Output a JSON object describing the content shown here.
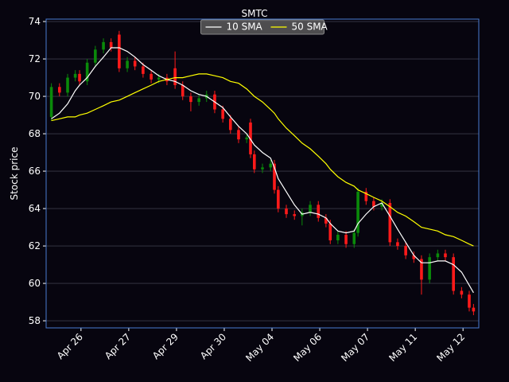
{
  "chart_data": {
    "type": "candlestick",
    "title": "SMTC",
    "y_label": "Stock price",
    "x": [
      0.38,
      0.55,
      0.72,
      0.88,
      0.97,
      1.13,
      1.3,
      1.47,
      1.63,
      1.8,
      1.97,
      2.13,
      2.3,
      2.47,
      2.63,
      2.8,
      2.97,
      3.13,
      3.3,
      3.47,
      3.63,
      3.8,
      3.97,
      4.13,
      4.3,
      4.47,
      4.55,
      4.63,
      4.8,
      4.97,
      5.05,
      5.13,
      5.3,
      5.47,
      5.63,
      5.8,
      5.97,
      6.13,
      6.22,
      6.38,
      6.55,
      6.72,
      6.8,
      6.97,
      7.13,
      7.3,
      7.47,
      7.63,
      7.8,
      7.97,
      8.13,
      8.3,
      8.47,
      8.63,
      8.8,
      8.97,
      9.13,
      9.22
    ],
    "open": [
      68.9,
      70.5,
      70.2,
      71.0,
      71.2,
      70.8,
      71.8,
      72.5,
      72.9,
      73.3,
      71.5,
      71.9,
      71.6,
      71.2,
      70.9,
      71.0,
      71.5,
      70.6,
      70.0,
      69.7,
      69.9,
      70.1,
      69.3,
      68.8,
      68.2,
      67.7,
      68.6,
      66.9,
      66.1,
      66.2,
      66.4,
      65.0,
      64.0,
      63.7,
      63.6,
      63.8,
      64.2,
      63.5,
      63.2,
      62.3,
      62.6,
      62.1,
      62.7,
      64.9,
      64.4,
      64.1,
      64.3,
      62.2,
      62.0,
      61.5,
      61.3,
      60.2,
      61.4,
      61.6,
      61.4,
      59.6,
      59.4,
      58.7
    ],
    "high": [
      70.7,
      70.7,
      71.2,
      71.4,
      71.4,
      72.0,
      72.7,
      73.1,
      73.1,
      73.5,
      72.1,
      72.1,
      71.8,
      71.4,
      71.2,
      71.2,
      72.4,
      70.8,
      70.2,
      70.1,
      70.3,
      70.3,
      69.5,
      69.0,
      68.4,
      68.0,
      68.8,
      67.1,
      66.4,
      66.6,
      66.6,
      65.2,
      64.2,
      63.9,
      64.0,
      64.4,
      64.4,
      63.7,
      63.4,
      62.8,
      62.8,
      62.9,
      65.1,
      65.1,
      64.6,
      64.5,
      64.5,
      62.4,
      62.2,
      61.7,
      61.5,
      61.6,
      61.8,
      61.8,
      61.6,
      59.8,
      59.6,
      58.9
    ],
    "low": [
      68.7,
      70.0,
      70.0,
      70.8,
      70.6,
      70.6,
      71.6,
      72.3,
      72.4,
      71.3,
      71.3,
      71.4,
      71.0,
      70.7,
      70.7,
      70.6,
      70.4,
      69.8,
      69.2,
      69.5,
      69.7,
      69.1,
      68.6,
      68.0,
      67.5,
      67.5,
      66.7,
      65.9,
      65.9,
      66.0,
      64.8,
      63.8,
      63.5,
      63.4,
      63.1,
      63.6,
      63.3,
      63.0,
      62.1,
      62.1,
      61.9,
      61.9,
      62.5,
      64.2,
      63.9,
      63.9,
      62.0,
      61.8,
      61.3,
      61.1,
      59.4,
      60.0,
      61.2,
      61.2,
      59.4,
      59.2,
      58.5,
      58.3
    ],
    "close": [
      70.5,
      70.2,
      71.0,
      71.2,
      70.8,
      71.8,
      72.5,
      72.9,
      72.6,
      71.5,
      71.9,
      71.6,
      71.2,
      70.9,
      71.0,
      70.8,
      70.6,
      70.0,
      69.7,
      69.9,
      70.1,
      69.3,
      68.8,
      68.2,
      67.7,
      67.8,
      66.9,
      66.1,
      66.2,
      66.4,
      65.0,
      64.0,
      63.7,
      63.6,
      63.8,
      64.2,
      63.5,
      63.2,
      62.3,
      62.6,
      62.1,
      62.7,
      64.9,
      64.4,
      64.1,
      64.3,
      62.2,
      62.0,
      61.5,
      61.3,
      60.2,
      61.4,
      61.6,
      61.4,
      59.6,
      59.4,
      58.7,
      58.5
    ],
    "up_color": "#0a8a0a",
    "down_color": "#ff1a1a",
    "series": [
      {
        "name": "10 SMA",
        "color": "#ffffff",
        "values": [
          68.8,
          69.1,
          69.6,
          70.3,
          70.6,
          71.0,
          71.6,
          72.1,
          72.6,
          72.6,
          72.4,
          72.1,
          71.7,
          71.4,
          71.1,
          70.9,
          70.8,
          70.6,
          70.3,
          70.1,
          70.0,
          69.7,
          69.4,
          68.9,
          68.4,
          68.0,
          67.7,
          67.4,
          67.0,
          66.7,
          66.2,
          65.6,
          64.9,
          64.2,
          63.7,
          63.8,
          63.7,
          63.5,
          63.2,
          62.8,
          62.7,
          62.8,
          63.2,
          63.7,
          64.1,
          64.3,
          63.6,
          62.9,
          62.2,
          61.5,
          61.1,
          61.1,
          61.2,
          61.2,
          61.0,
          60.6,
          59.9,
          59.5
        ]
      },
      {
        "name": "50 SMA",
        "color": "#ffff00",
        "values": [
          68.7,
          68.8,
          68.9,
          68.9,
          69.0,
          69.1,
          69.3,
          69.5,
          69.7,
          69.8,
          70.0,
          70.2,
          70.4,
          70.6,
          70.8,
          70.9,
          71.0,
          71.0,
          71.1,
          71.2,
          71.2,
          71.1,
          71.0,
          70.8,
          70.7,
          70.4,
          70.2,
          70.0,
          69.7,
          69.3,
          69.1,
          68.8,
          68.3,
          67.9,
          67.5,
          67.2,
          66.8,
          66.4,
          66.1,
          65.7,
          65.4,
          65.2,
          65.0,
          64.8,
          64.6,
          64.4,
          64.1,
          63.8,
          63.6,
          63.3,
          63.0,
          62.9,
          62.8,
          62.6,
          62.5,
          62.3,
          62.1,
          62.0
        ]
      }
    ],
    "xlim": [
      0.27,
      9.33
    ],
    "ylim": [
      57.62,
      74.13
    ],
    "xticks": [
      {
        "value": 1,
        "label": "Apr 26"
      },
      {
        "value": 2,
        "label": "Apr 27"
      },
      {
        "value": 3,
        "label": "Apr 29"
      },
      {
        "value": 4,
        "label": "Apr 30"
      },
      {
        "value": 5,
        "label": "May 04"
      },
      {
        "value": 6,
        "label": "May 06"
      },
      {
        "value": 7,
        "label": "May 07"
      },
      {
        "value": 8,
        "label": "May 11"
      },
      {
        "value": 9,
        "label": "May 12"
      }
    ],
    "yticks": [
      58,
      60,
      62,
      64,
      66,
      68,
      70,
      72,
      74
    ],
    "grid": true,
    "legend": "upper center"
  }
}
